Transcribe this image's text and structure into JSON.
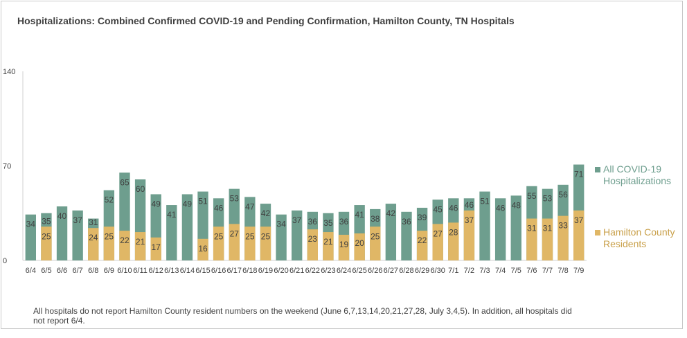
{
  "colors": {
    "all": "#6e9e8e",
    "residents": "#e0b766",
    "axis_text": "#404040",
    "label_text": "#404040"
  },
  "chart_data": {
    "type": "bar",
    "title": "Hospitalizations: Combined Confirmed COVID-19 and Pending Confirmation, Hamilton County, TN Hospitals",
    "ylim": [
      0,
      140
    ],
    "yticks": [
      "0",
      "70",
      "140"
    ],
    "categories": [
      "6/4",
      "6/5",
      "6/6",
      "6/7",
      "6/8",
      "6/9",
      "6/10",
      "6/11",
      "6/12",
      "6/13",
      "6/14",
      "6/15",
      "6/16",
      "6/17",
      "6/18",
      "6/19",
      "6/20",
      "6/21",
      "6/22",
      "6/23",
      "6/24",
      "6/25",
      "6/26",
      "6/27",
      "6/28",
      "6/29",
      "6/30",
      "7/1",
      "7/2",
      "7/3",
      "7/4",
      "7/5",
      "7/6",
      "7/7",
      "7/8",
      "7/9"
    ],
    "series": [
      {
        "name": "All COVID-19 Hospitalizations",
        "values": [
          34,
          35,
          40,
          37,
          31,
          52,
          65,
          60,
          49,
          41,
          49,
          51,
          46,
          53,
          47,
          42,
          34,
          37,
          36,
          35,
          36,
          41,
          38,
          42,
          36,
          39,
          45,
          46,
          46,
          51,
          46,
          48,
          55,
          53,
          56,
          71
        ]
      },
      {
        "name": "Hamilton County Residents",
        "values": [
          null,
          25,
          null,
          null,
          24,
          25,
          22,
          21,
          17,
          null,
          null,
          16,
          25,
          27,
          25,
          25,
          null,
          null,
          23,
          21,
          19,
          20,
          25,
          null,
          null,
          22,
          27,
          28,
          37,
          null,
          null,
          null,
          31,
          31,
          33,
          37
        ]
      }
    ],
    "legend_position": "right",
    "overlap": true
  },
  "footnote": "All hospitals do not report Hamilton County resident numbers on the weekend (June 6,7,13,14,20,21,27,28, July 3,4,5). In addition, all hospitals did not report 6/4."
}
